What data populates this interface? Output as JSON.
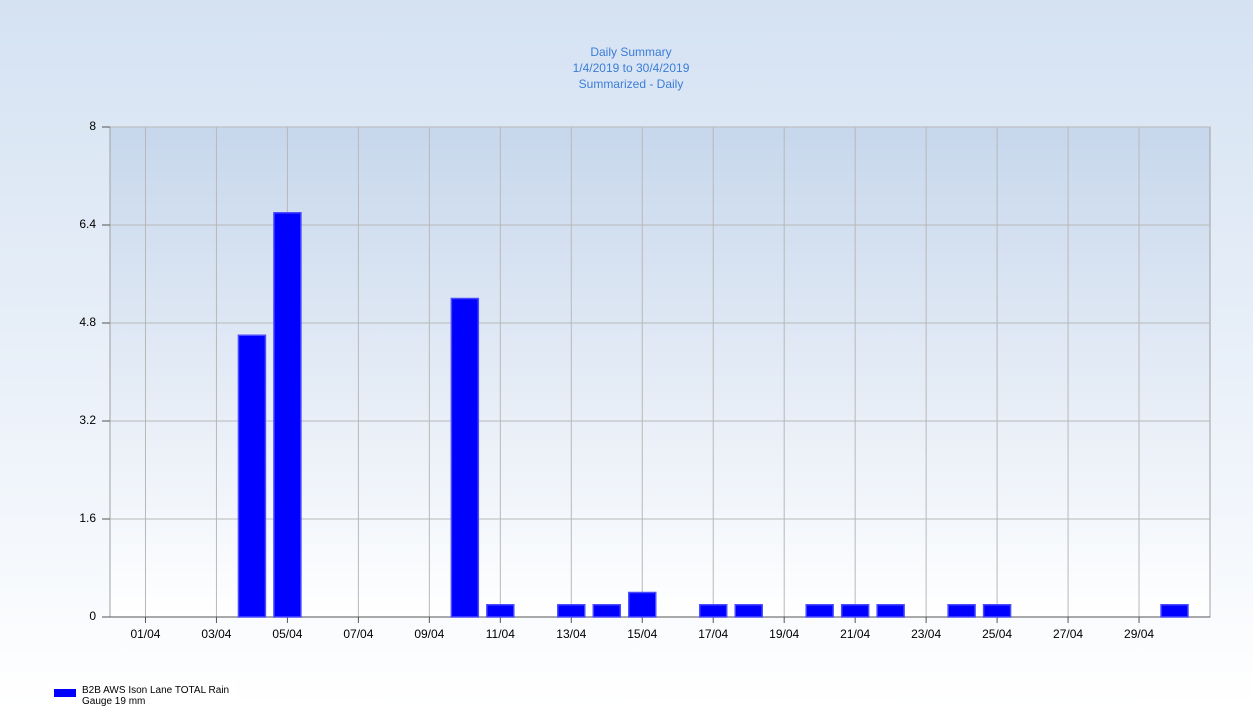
{
  "chart_data": {
    "type": "bar",
    "title": "Daily Summary",
    "subtitle": [
      "1/4/2019 to 30/4/2019",
      "Summarized - Daily"
    ],
    "categories": [
      "01/04",
      null,
      "03/04",
      null,
      "05/04",
      null,
      "07/04",
      null,
      "09/04",
      null,
      "11/04",
      null,
      "13/04",
      null,
      "15/04",
      null,
      "17/04",
      null,
      "19/04",
      null,
      "21/04",
      null,
      "23/04",
      null,
      "25/04",
      null,
      "27/04",
      null,
      "29/04",
      null
    ],
    "series": [
      {
        "name": "B2B AWS Ison Lane TOTAL Rain Gauge 19 mm",
        "color": "#0000ff",
        "values": [
          0,
          0,
          0,
          4.6,
          6.6,
          0,
          0,
          0,
          0,
          5.2,
          0.2,
          0,
          0.2,
          0.2,
          0.4,
          0,
          0.2,
          0.2,
          0,
          0.2,
          0.2,
          0.2,
          0,
          0.2,
          0.2,
          0,
          0,
          0,
          0,
          0.2
        ]
      }
    ],
    "ylim": [
      0,
      8
    ],
    "yticks": [
      0,
      1.6,
      3.2,
      4.8,
      6.4,
      8
    ],
    "grid": true
  }
}
